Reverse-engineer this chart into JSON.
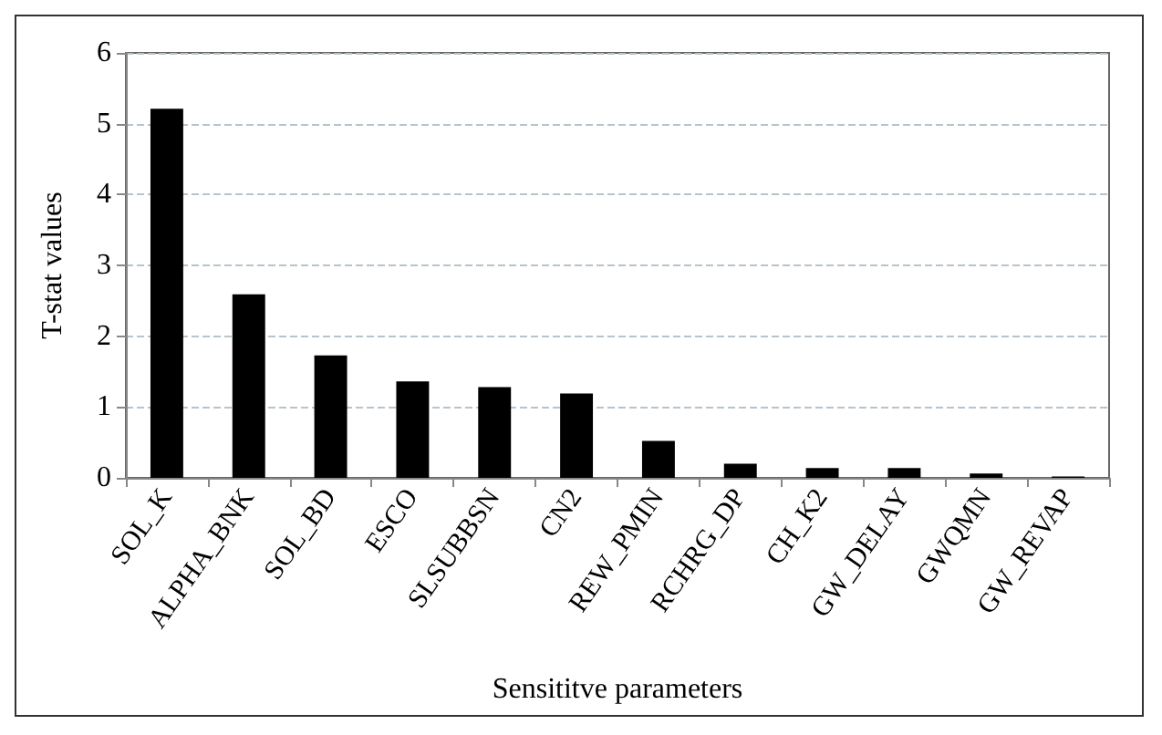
{
  "chart_data": {
    "type": "bar",
    "xlabel": "Sensititve parameters",
    "ylabel": "T-stat values",
    "categories": [
      "SOL_K",
      "ALPHA_BNK",
      "SOL_BD",
      "ESCO",
      "SLSUBBSN",
      "CN2",
      "REW_PMIN",
      "RCHRG_DP",
      "CH_K2",
      "GW_DELAY",
      "GWQMN",
      "GW_REVAP"
    ],
    "values": [
      5.21,
      2.59,
      1.73,
      1.36,
      1.28,
      1.19,
      0.52,
      0.2,
      0.14,
      0.14,
      0.06,
      0.02
    ],
    "color": "#000000",
    "ylim": [
      0,
      6
    ],
    "yticks": [
      0,
      1,
      2,
      3,
      4,
      5,
      6
    ],
    "grid": "y"
  }
}
